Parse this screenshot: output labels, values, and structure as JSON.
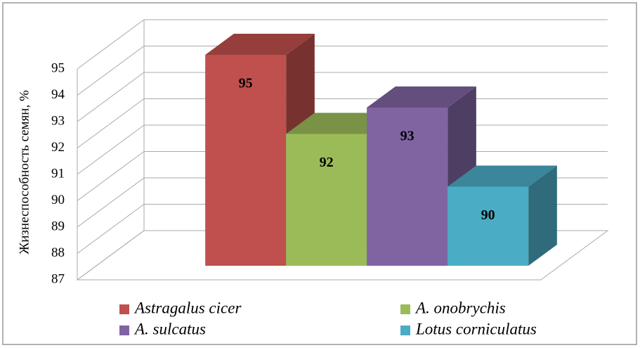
{
  "chart_data": {
    "type": "bar",
    "ylabel": "Жизнеспособность семян, %",
    "categories": [
      null
    ],
    "series": [
      {
        "name": "Astragalus cicer",
        "color": "#c0504d",
        "values": [
          95
        ]
      },
      {
        "name": "A. onobrychis",
        "color": "#9bbb59",
        "values": [
          92
        ]
      },
      {
        "name": "A. sulcatus",
        "color": "#8064a2",
        "values": [
          93
        ]
      },
      {
        "name": "Lotus corniculatus",
        "color": "#4bacc6",
        "values": [
          90
        ]
      }
    ],
    "ylim": [
      87,
      95
    ],
    "yticks": [
      87,
      88,
      89,
      90,
      91,
      92,
      93,
      94,
      95
    ],
    "grid": true
  }
}
